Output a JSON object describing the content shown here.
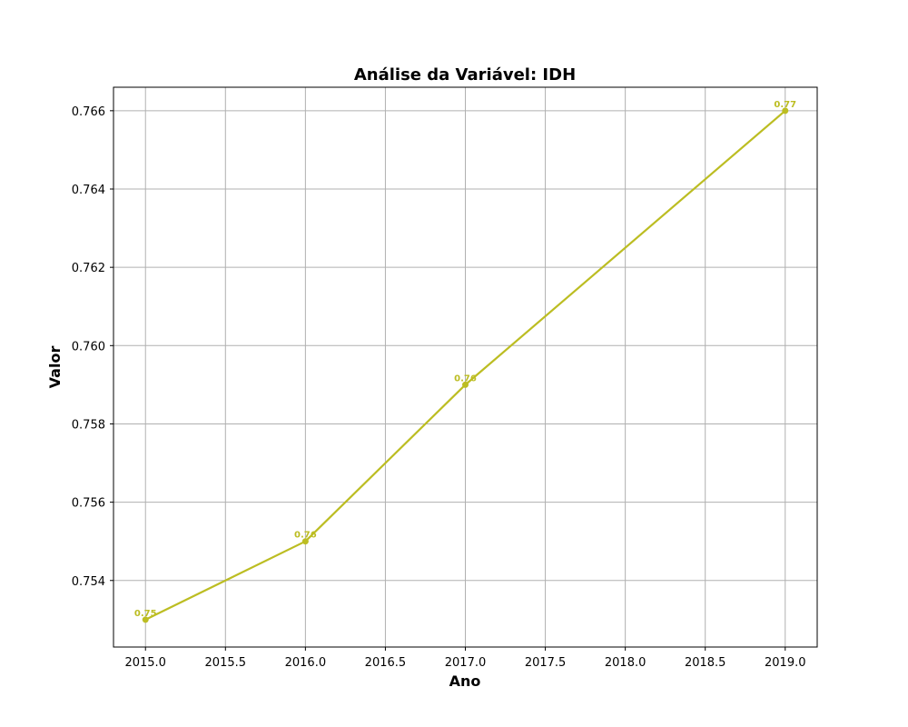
{
  "chart_data": {
    "type": "line",
    "title": "Análise da Variável: IDH",
    "xlabel": "Ano",
    "ylabel": "Valor",
    "xlim": [
      2014.8,
      2019.2
    ],
    "ylim": [
      0.7523,
      0.7666
    ],
    "grid": true,
    "color": "#bcbd22",
    "x_ticks": [
      "2015.0",
      "2015.5",
      "2016.0",
      "2016.5",
      "2017.0",
      "2017.5",
      "2018.0",
      "2018.5",
      "2019.0"
    ],
    "y_ticks": [
      "0.754",
      "0.756",
      "0.758",
      "0.760",
      "0.762",
      "0.764",
      "0.766"
    ],
    "series": [
      {
        "x": [
          2015,
          2016,
          2017,
          2019
        ],
        "y": [
          0.753,
          0.755,
          0.759,
          0.766
        ],
        "labels": [
          "0.75",
          "0.76",
          "0.76",
          "0.77"
        ]
      }
    ]
  }
}
